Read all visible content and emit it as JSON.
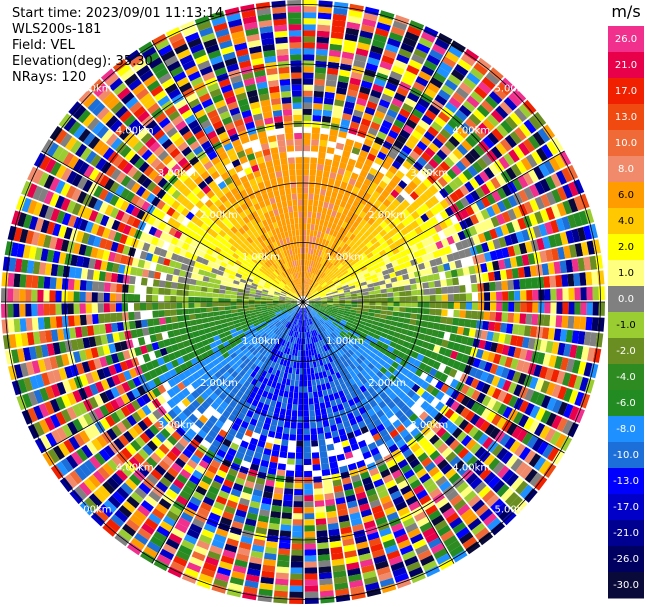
{
  "info": {
    "start_time": "Start time: 2023/09/01 11:13:14",
    "instrument": "WLS200s-181",
    "field": "Field: VEL",
    "elevation": "Elevation(deg): 35.30",
    "nrays": "NRays: 120"
  },
  "chart_data": {
    "type": "heatmap",
    "projection": "polar-ppi",
    "field": "VEL",
    "units": "m/s",
    "nrays": 120,
    "elevation_deg": 35.3,
    "range_rings_km": [
      1.0,
      2.0,
      3.0,
      4.0,
      5.0
    ],
    "ring_labels": [
      "1.00km",
      "2.00km",
      "3.00km",
      "4.00km",
      "5.00km"
    ],
    "colorbar": {
      "title": "m/s",
      "ticks": [
        "26.0",
        "21.0",
        "17.0",
        "13.0",
        "10.0",
        "8.0",
        "6.0",
        "4.0",
        "2.0",
        "1.0",
        "0.0",
        "-1.0",
        "-2.0",
        "-4.0",
        "-6.0",
        "-8.0",
        "-10.0",
        "-13.0",
        "-17.0",
        "-21.0",
        "-26.0",
        "-30.0"
      ],
      "colors": [
        "#f0308c",
        "#e8004a",
        "#f02000",
        "#f04a10",
        "#f06a38",
        "#f08a6a",
        "#ff9c00",
        "#ffc800",
        "#ffff00",
        "#ffff80",
        "#808080",
        "#9acd32",
        "#6b8e23",
        "#2e8b22",
        "#228b22",
        "#1e90ff",
        "#1c6fd8",
        "#0000ff",
        "#0000c8",
        "#000090",
        "#000060",
        "#0a0a3a"
      ]
    }
  }
}
